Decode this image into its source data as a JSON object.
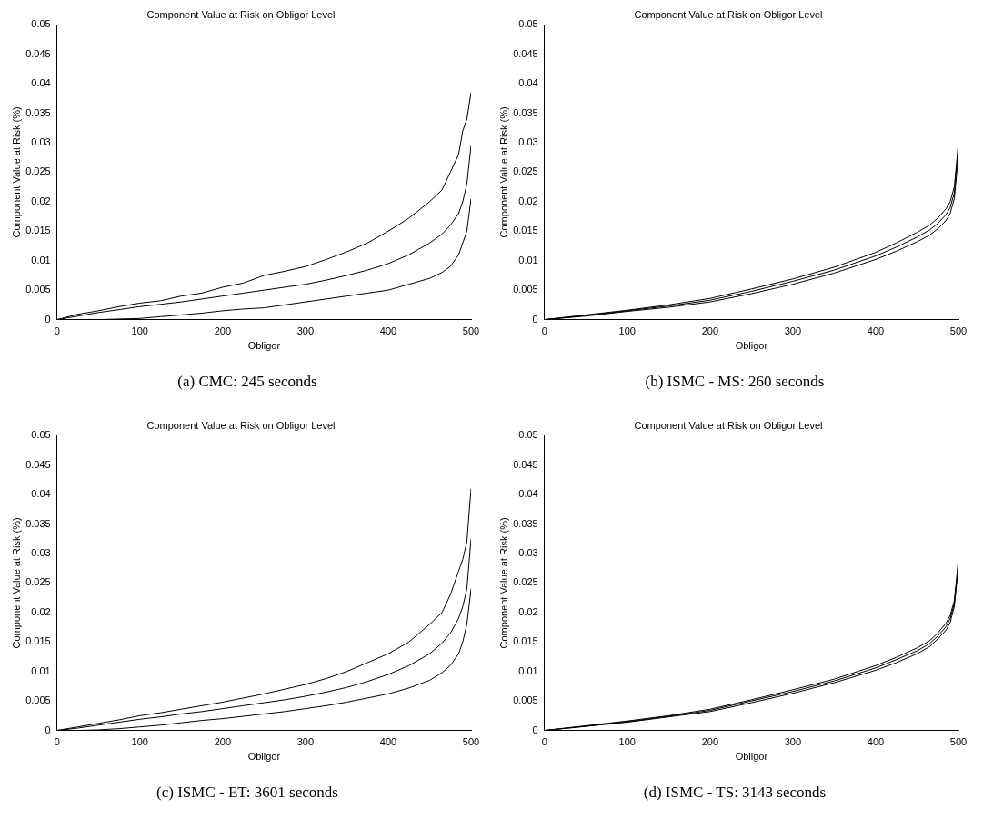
{
  "chart_data": [
    {
      "type": "line",
      "title": "Component Value at Risk on Obligor Level",
      "xlabel": "Obligor",
      "ylabel": "Component Value at Risk (%)",
      "xlim": [
        0,
        500
      ],
      "ylim": [
        0,
        0.05
      ],
      "xticks": [
        0,
        100,
        200,
        300,
        400,
        500
      ],
      "yticks": [
        0,
        0.005,
        0.01,
        0.015,
        0.02,
        0.025,
        0.03,
        0.035,
        0.04,
        0.045,
        0.05
      ],
      "grid": false,
      "annotations": [
        "(a) CMC: 245 seconds"
      ],
      "series": [
        {
          "color": "#000000",
          "x": [
            0,
            25,
            50,
            75,
            100,
            125,
            150,
            175,
            200,
            225,
            250,
            275,
            300,
            325,
            350,
            375,
            400,
            425,
            450,
            465,
            475,
            485,
            490,
            495,
            500
          ],
          "values": [
            0,
            0.0009,
            0.0015,
            0.0022,
            0.0028,
            0.0032,
            0.004,
            0.0045,
            0.0055,
            0.0062,
            0.0075,
            0.0082,
            0.009,
            0.0102,
            0.0115,
            0.013,
            0.015,
            0.0172,
            0.02,
            0.022,
            0.025,
            0.028,
            0.032,
            0.034,
            0.0385
          ]
        },
        {
          "color": "#000000",
          "x": [
            0,
            25,
            50,
            75,
            100,
            125,
            150,
            175,
            200,
            225,
            250,
            275,
            300,
            325,
            350,
            375,
            400,
            425,
            450,
            465,
            475,
            485,
            490,
            495,
            500
          ],
          "values": [
            0,
            0.0006,
            0.0012,
            0.0017,
            0.0022,
            0.0026,
            0.003,
            0.0035,
            0.004,
            0.0045,
            0.005,
            0.0055,
            0.006,
            0.0067,
            0.0075,
            0.0084,
            0.0095,
            0.011,
            0.013,
            0.0145,
            0.016,
            0.018,
            0.02,
            0.023,
            0.0295
          ]
        },
        {
          "color": "#000000",
          "x": [
            0,
            25,
            50,
            75,
            100,
            125,
            150,
            175,
            200,
            225,
            250,
            275,
            300,
            325,
            350,
            375,
            400,
            425,
            450,
            465,
            475,
            485,
            490,
            495,
            500
          ],
          "values": [
            0,
            0,
            0,
            0.0001,
            0.0002,
            0.0005,
            0.0008,
            0.0011,
            0.0015,
            0.0018,
            0.002,
            0.0025,
            0.003,
            0.0035,
            0.004,
            0.0045,
            0.005,
            0.006,
            0.007,
            0.008,
            0.009,
            0.011,
            0.013,
            0.015,
            0.0205
          ]
        }
      ]
    },
    {
      "type": "line",
      "title": "Component Value at Risk on Obligor Level",
      "xlabel": "Obligor",
      "ylabel": "Component Value at Risk (%)",
      "xlim": [
        0,
        500
      ],
      "ylim": [
        0,
        0.05
      ],
      "xticks": [
        0,
        100,
        200,
        300,
        400,
        500
      ],
      "yticks": [
        0,
        0.005,
        0.01,
        0.015,
        0.02,
        0.025,
        0.03,
        0.035,
        0.04,
        0.045,
        0.05
      ],
      "grid": false,
      "annotations": [
        "(b) ISMC - MS: 260 seconds"
      ],
      "series": [
        {
          "color": "#000000",
          "x": [
            0,
            50,
            100,
            150,
            200,
            250,
            300,
            350,
            400,
            425,
            450,
            465,
            475,
            485,
            490,
            495,
            500
          ],
          "values": [
            0,
            0.0008,
            0.0016,
            0.0025,
            0.0036,
            0.0052,
            0.0069,
            0.0089,
            0.0114,
            0.013,
            0.0148,
            0.016,
            0.0172,
            0.0188,
            0.02,
            0.0225,
            0.03
          ]
        },
        {
          "color": "#000000",
          "x": [
            0,
            50,
            100,
            150,
            200,
            250,
            300,
            350,
            400,
            425,
            450,
            465,
            475,
            485,
            490,
            495,
            500
          ],
          "values": [
            0,
            0.0007,
            0.0015,
            0.0023,
            0.0033,
            0.0048,
            0.0065,
            0.0084,
            0.0108,
            0.0123,
            0.014,
            0.0152,
            0.0163,
            0.0178,
            0.019,
            0.0215,
            0.0295
          ]
        },
        {
          "color": "#000000",
          "x": [
            0,
            50,
            100,
            150,
            200,
            250,
            300,
            350,
            400,
            425,
            450,
            465,
            475,
            485,
            490,
            495,
            500
          ],
          "values": [
            0,
            0.0006,
            0.0014,
            0.0021,
            0.003,
            0.0044,
            0.006,
            0.0079,
            0.0102,
            0.0116,
            0.0132,
            0.0143,
            0.0154,
            0.0168,
            0.018,
            0.0205,
            0.028
          ]
        }
      ]
    },
    {
      "type": "line",
      "title": "Component Value at Risk on Obligor Level",
      "xlabel": "Obligor",
      "ylabel": "Component Value at Risk (%)",
      "xlim": [
        0,
        500
      ],
      "ylim": [
        0,
        0.05
      ],
      "xticks": [
        0,
        100,
        200,
        300,
        400,
        500
      ],
      "yticks": [
        0,
        0.005,
        0.01,
        0.015,
        0.02,
        0.025,
        0.03,
        0.035,
        0.04,
        0.045,
        0.05
      ],
      "grid": false,
      "annotations": [
        "(c) ISMC - ET: 3601 seconds"
      ],
      "series": [
        {
          "color": "#000000",
          "x": [
            0,
            25,
            50,
            75,
            100,
            125,
            150,
            175,
            200,
            225,
            250,
            275,
            300,
            325,
            350,
            375,
            400,
            425,
            450,
            465,
            475,
            485,
            490,
            495,
            500
          ],
          "values": [
            0,
            0.0006,
            0.0012,
            0.0018,
            0.0025,
            0.003,
            0.0036,
            0.0042,
            0.0048,
            0.0055,
            0.0062,
            0.007,
            0.0078,
            0.0088,
            0.01,
            0.0115,
            0.013,
            0.015,
            0.018,
            0.02,
            0.023,
            0.027,
            0.029,
            0.032,
            0.041
          ]
        },
        {
          "color": "#000000",
          "x": [
            0,
            25,
            50,
            75,
            100,
            125,
            150,
            175,
            200,
            225,
            250,
            275,
            300,
            325,
            350,
            375,
            400,
            425,
            450,
            465,
            475,
            485,
            490,
            495,
            500
          ],
          "values": [
            0,
            0.0004,
            0.0009,
            0.0014,
            0.0019,
            0.0023,
            0.0028,
            0.0032,
            0.0037,
            0.0042,
            0.0047,
            0.0052,
            0.0058,
            0.0065,
            0.0073,
            0.0083,
            0.0095,
            0.011,
            0.013,
            0.0148,
            0.0165,
            0.019,
            0.021,
            0.024,
            0.0325
          ]
        },
        {
          "color": "#000000",
          "x": [
            0,
            25,
            50,
            75,
            100,
            125,
            150,
            175,
            200,
            225,
            250,
            275,
            300,
            325,
            350,
            375,
            400,
            425,
            450,
            465,
            475,
            485,
            490,
            495,
            500
          ],
          "values": [
            0,
            0,
            0.0001,
            0.0003,
            0.0006,
            0.0009,
            0.0013,
            0.0017,
            0.002,
            0.0024,
            0.0028,
            0.0032,
            0.0037,
            0.0042,
            0.0048,
            0.0055,
            0.0062,
            0.0072,
            0.0085,
            0.0098,
            0.011,
            0.013,
            0.015,
            0.018,
            0.024
          ]
        }
      ]
    },
    {
      "type": "line",
      "title": "Component Value at Risk on Obligor Level",
      "xlabel": "Obligor",
      "ylabel": "Component Value at Risk (%)",
      "xlim": [
        0,
        500
      ],
      "ylim": [
        0,
        0.05
      ],
      "xticks": [
        0,
        100,
        200,
        300,
        400,
        500
      ],
      "yticks": [
        0,
        0.005,
        0.01,
        0.015,
        0.02,
        0.025,
        0.03,
        0.035,
        0.04,
        0.045,
        0.05
      ],
      "grid": false,
      "annotations": [
        "(d) ISMC - TS: 3143 seconds"
      ],
      "series": [
        {
          "color": "#000000",
          "x": [
            0,
            50,
            100,
            150,
            200,
            250,
            300,
            350,
            400,
            425,
            450,
            465,
            475,
            485,
            490,
            495,
            500
          ],
          "values": [
            0,
            0.0008,
            0.0016,
            0.0025,
            0.0036,
            0.0052,
            0.0069,
            0.0087,
            0.011,
            0.0124,
            0.014,
            0.0152,
            0.0165,
            0.0182,
            0.0195,
            0.022,
            0.029
          ]
        },
        {
          "color": "#000000",
          "x": [
            0,
            50,
            100,
            150,
            200,
            250,
            300,
            350,
            400,
            425,
            450,
            465,
            475,
            485,
            490,
            495,
            500
          ],
          "values": [
            0,
            0.0007,
            0.0015,
            0.0024,
            0.0034,
            0.005,
            0.0066,
            0.0084,
            0.0106,
            0.012,
            0.0135,
            0.0147,
            0.016,
            0.0176,
            0.019,
            0.0215,
            0.0285
          ]
        },
        {
          "color": "#000000",
          "x": [
            0,
            50,
            100,
            150,
            200,
            250,
            300,
            350,
            400,
            425,
            450,
            465,
            475,
            485,
            490,
            495,
            500
          ],
          "values": [
            0,
            0.0007,
            0.0014,
            0.0023,
            0.0032,
            0.0047,
            0.0063,
            0.0081,
            0.0102,
            0.0115,
            0.013,
            0.0142,
            0.0155,
            0.017,
            0.0183,
            0.021,
            0.028
          ]
        }
      ]
    }
  ]
}
